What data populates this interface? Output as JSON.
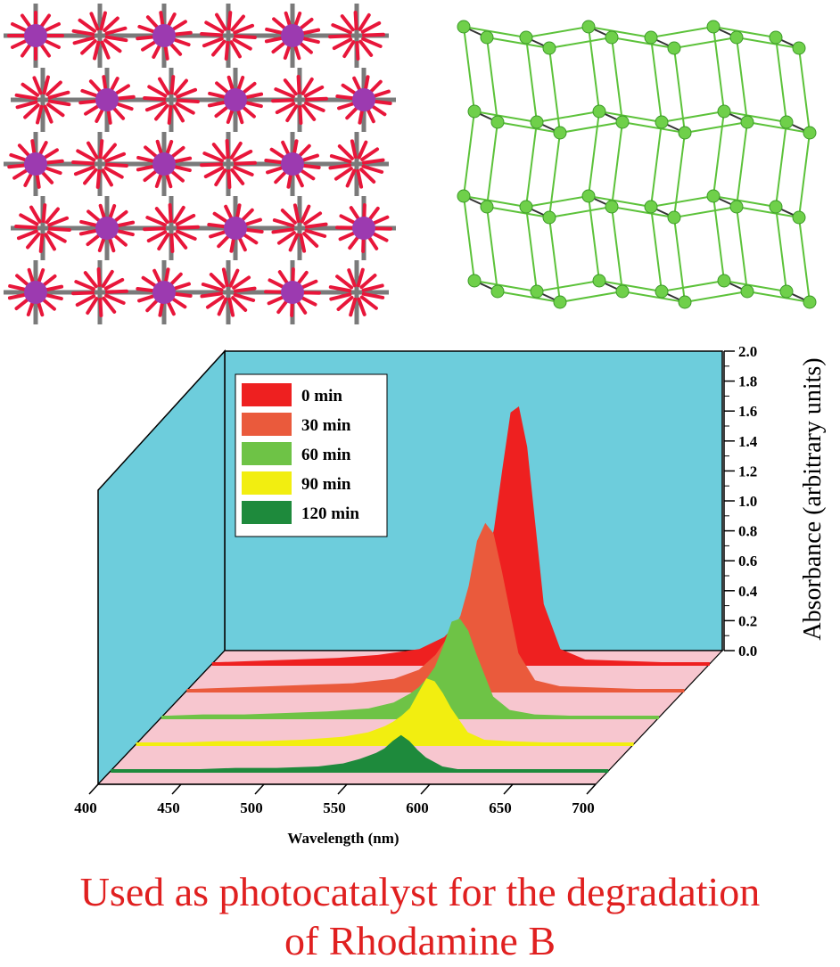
{
  "figure": {
    "structure_left": {
      "name": "3D polymeric framework (stick model)"
    },
    "structure_right": {
      "name": "simplified topological net (green nodes)"
    },
    "caption_line1": "Used as photocatalyst for the degradation",
    "caption_line2": "of Rhodamine B"
  },
  "chart_data": {
    "type": "area",
    "title": "",
    "xlabel": "Wavelength (nm)",
    "ylabel": "Absorbance (arbitrary units)",
    "xlim": [
      400,
      700
    ],
    "ylim": [
      0.0,
      2.0
    ],
    "xticks": [
      "400",
      "450",
      "500",
      "550",
      "600",
      "650",
      "700"
    ],
    "yticks": [
      "0.0",
      "0.2",
      "0.4",
      "0.6",
      "0.8",
      "1.0",
      "1.2",
      "1.4",
      "1.6",
      "1.8",
      "2.0"
    ],
    "legend_position": "top-left",
    "x": [
      400,
      425,
      450,
      475,
      500,
      525,
      540,
      550,
      555,
      560,
      565,
      570,
      575,
      580,
      585,
      590,
      600,
      610,
      625,
      650,
      675,
      700
    ],
    "series": [
      {
        "name": "0 min",
        "color": "#ee2020",
        "values": [
          0.01,
          0.02,
          0.03,
          0.04,
          0.06,
          0.1,
          0.18,
          0.3,
          0.42,
          0.55,
          0.68,
          0.9,
          1.3,
          1.68,
          1.72,
          1.45,
          0.4,
          0.1,
          0.03,
          0.02,
          0.01,
          0.01
        ]
      },
      {
        "name": "30 min",
        "color": "#ea5a3c",
        "values": [
          0.01,
          0.02,
          0.03,
          0.04,
          0.05,
          0.08,
          0.14,
          0.24,
          0.32,
          0.4,
          0.5,
          0.7,
          1.0,
          1.12,
          1.05,
          0.8,
          0.25,
          0.07,
          0.03,
          0.02,
          0.01,
          0.01
        ]
      },
      {
        "name": "60 min",
        "color": "#6ec346",
        "values": [
          0.01,
          0.02,
          0.02,
          0.03,
          0.04,
          0.06,
          0.1,
          0.16,
          0.2,
          0.26,
          0.34,
          0.48,
          0.64,
          0.66,
          0.58,
          0.42,
          0.14,
          0.05,
          0.02,
          0.01,
          0.01,
          0.01
        ]
      },
      {
        "name": "90 min",
        "color": "#f2ee10",
        "values": [
          0.01,
          0.01,
          0.02,
          0.02,
          0.03,
          0.05,
          0.08,
          0.12,
          0.15,
          0.19,
          0.24,
          0.34,
          0.44,
          0.42,
          0.34,
          0.24,
          0.08,
          0.03,
          0.02,
          0.01,
          0.01,
          0.01
        ]
      },
      {
        "name": "120 min",
        "color": "#1e8a3c",
        "values": [
          0.01,
          0.01,
          0.01,
          0.02,
          0.02,
          0.03,
          0.05,
          0.08,
          0.1,
          0.12,
          0.15,
          0.2,
          0.24,
          0.2,
          0.14,
          0.09,
          0.03,
          0.01,
          0.01,
          0.01,
          0.01,
          0.01
        ]
      }
    ]
  }
}
